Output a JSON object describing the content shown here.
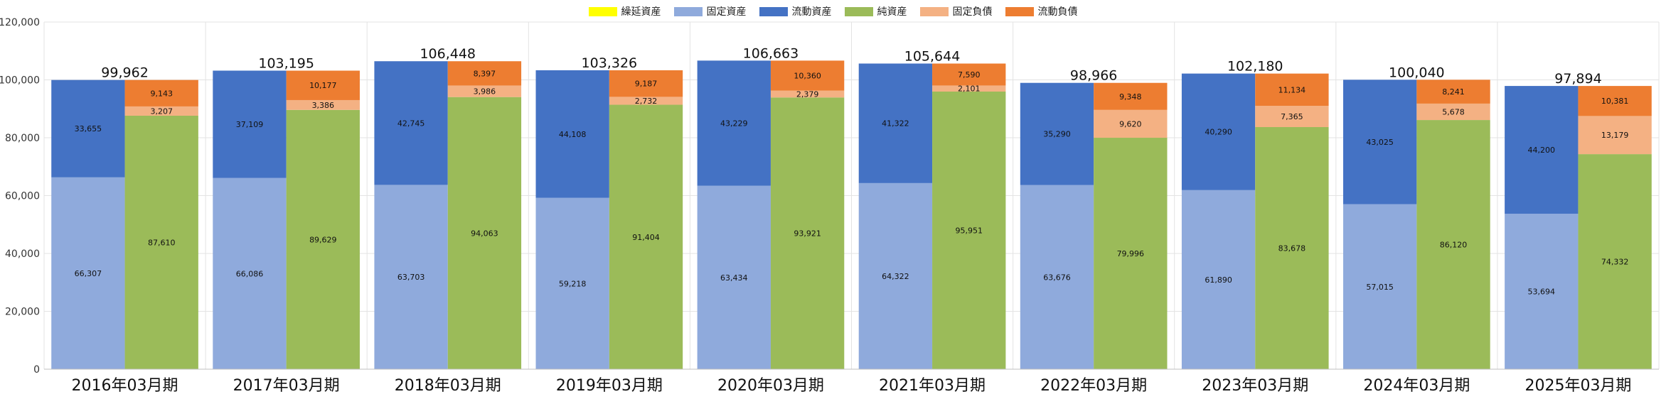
{
  "chart_data": {
    "type": "bar",
    "subtype": "stacked-paired",
    "legend_position": "top-center",
    "ylim": [
      0,
      120000
    ],
    "y_ticks": [
      "0",
      "20,000",
      "40,000",
      "60,000",
      "80,000",
      "100,000",
      "120,000"
    ],
    "categories": [
      "2016年03月期",
      "2017年03月期",
      "2018年03月期",
      "2019年03月期",
      "2020年03月期",
      "2021年03月期",
      "2022年03月期",
      "2023年03月期",
      "2024年03月期",
      "2025年03月期"
    ],
    "totals": [
      "99,962",
      "103,195",
      "106,448",
      "103,326",
      "106,663",
      "105,644",
      "98,966",
      "102,180",
      "100,040",
      "97,894"
    ],
    "assets_bar": [
      {
        "name": "繰延資産",
        "color": "#FFFF00",
        "values": [
          0,
          0,
          0,
          0,
          0,
          0,
          0,
          0,
          0,
          0
        ],
        "labels": [
          "",
          "",
          "",
          "",
          "",
          "",
          "",
          "",
          "",
          ""
        ]
      },
      {
        "name": "固定資産",
        "color": "#8FAADC",
        "values": [
          66307,
          66086,
          63703,
          59218,
          63434,
          64322,
          63676,
          61890,
          57015,
          53694
        ],
        "labels": [
          "66,307",
          "66,086",
          "63,703",
          "59,218",
          "63,434",
          "64,322",
          "63,676",
          "61,890",
          "57,015",
          "53,694"
        ]
      },
      {
        "name": "流動資産",
        "color": "#4472C4",
        "values": [
          33655,
          37109,
          42745,
          44108,
          43229,
          41322,
          35290,
          40290,
          43025,
          44200
        ],
        "labels": [
          "33,655",
          "37,109",
          "42,745",
          "44,108",
          "43,229",
          "41,322",
          "35,290",
          "40,290",
          "43,025",
          "44,200"
        ]
      }
    ],
    "liabilities_bar": [
      {
        "name": "純資産",
        "color": "#9BBB59",
        "values": [
          87610,
          89629,
          94063,
          91404,
          93921,
          95951,
          79996,
          83678,
          86120,
          74332
        ],
        "labels": [
          "87,610",
          "89,629",
          "94,063",
          "91,404",
          "93,921",
          "95,951",
          "79,996",
          "83,678",
          "86,120",
          "74,332"
        ]
      },
      {
        "name": "固定負債",
        "color": "#F4B183",
        "values": [
          3207,
          3386,
          3986,
          2732,
          2379,
          2101,
          9620,
          7365,
          5678,
          13179
        ],
        "labels": [
          "3,207",
          "3,386",
          "3,986",
          "2,732",
          "2,379",
          "2,101",
          "9,620",
          "7,365",
          "5,678",
          "13,179"
        ]
      },
      {
        "name": "流動負債",
        "color": "#ED7D31",
        "values": [
          9143,
          10177,
          8397,
          9187,
          10360,
          7590,
          9348,
          11134,
          8241,
          10381
        ],
        "labels": [
          "9,143",
          "10,177",
          "8,397",
          "9,187",
          "10,360",
          "7,590",
          "9,348",
          "11,134",
          "8,241",
          "10,381"
        ]
      }
    ],
    "legend": [
      {
        "name": "繰延資産",
        "color": "#FFFF00"
      },
      {
        "name": "固定資産",
        "color": "#8FAADC"
      },
      {
        "name": "流動資産",
        "color": "#4472C4"
      },
      {
        "name": "純資産",
        "color": "#9BBB59"
      },
      {
        "name": "固定負債",
        "color": "#F4B183"
      },
      {
        "name": "流動負債",
        "color": "#ED7D31"
      }
    ]
  }
}
